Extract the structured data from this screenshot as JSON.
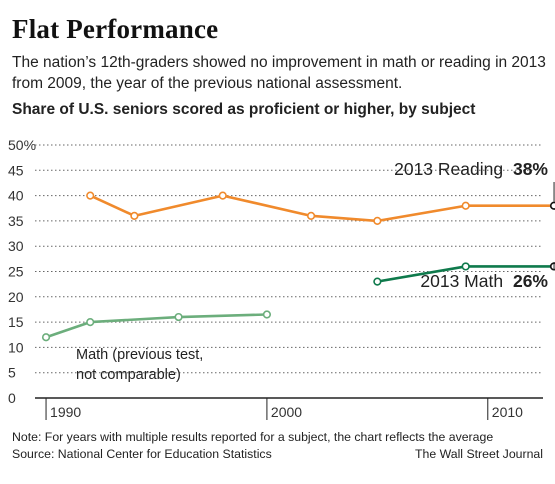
{
  "title": "Flat Performance",
  "subtitle": "The nation’s 12th-graders showed no improvement in math or reading in 2013 from 2009, the year of the previous national assessment.",
  "chart_heading": "Share of U.S. seniors scored as proficient or higher, by subject",
  "note": "Note: For years with multiple results reported for a subject, the chart reflects the average",
  "source": "Source: National Center for Education Statistics",
  "credit": "The Wall Street Journal",
  "colors": {
    "reading": "#f08a2c",
    "math": "#0f7a4c",
    "math_old": "#6cae7c",
    "grid": "#666666"
  },
  "chart_data": {
    "type": "line",
    "ylim": [
      0,
      50
    ],
    "xlim": [
      1989.5,
      2012.5
    ],
    "y_ticks": [
      0,
      5,
      10,
      15,
      20,
      25,
      30,
      35,
      40,
      45,
      50
    ],
    "y_tick_labels": [
      "0",
      "5",
      "10",
      "15",
      "20",
      "25",
      "30",
      "35",
      "40",
      "45",
      "50%"
    ],
    "x_ticks": [
      1990,
      2000,
      2010
    ],
    "x_tick_labels": [
      "1990",
      "2000",
      "2010"
    ],
    "grid": true,
    "series": [
      {
        "key": "reading",
        "x": [
          1992,
          1994,
          1998,
          2002,
          2005,
          2009,
          2013
        ],
        "y": [
          40,
          36,
          40,
          36,
          35,
          38,
          38
        ]
      },
      {
        "key": "math_old",
        "x": [
          1990,
          1992,
          1996,
          2000
        ],
        "y": [
          12,
          15,
          16,
          16.5
        ]
      },
      {
        "key": "math",
        "x": [
          2005,
          2009,
          2013
        ],
        "y": [
          23,
          26,
          26
        ]
      }
    ],
    "annotations": {
      "reading_label": "2013 Reading",
      "reading_value": "38%",
      "math_label": "2013 Math",
      "math_value": "26%",
      "math_old_label_1": "Math (previous test,",
      "math_old_label_2": "not comparable)"
    }
  }
}
